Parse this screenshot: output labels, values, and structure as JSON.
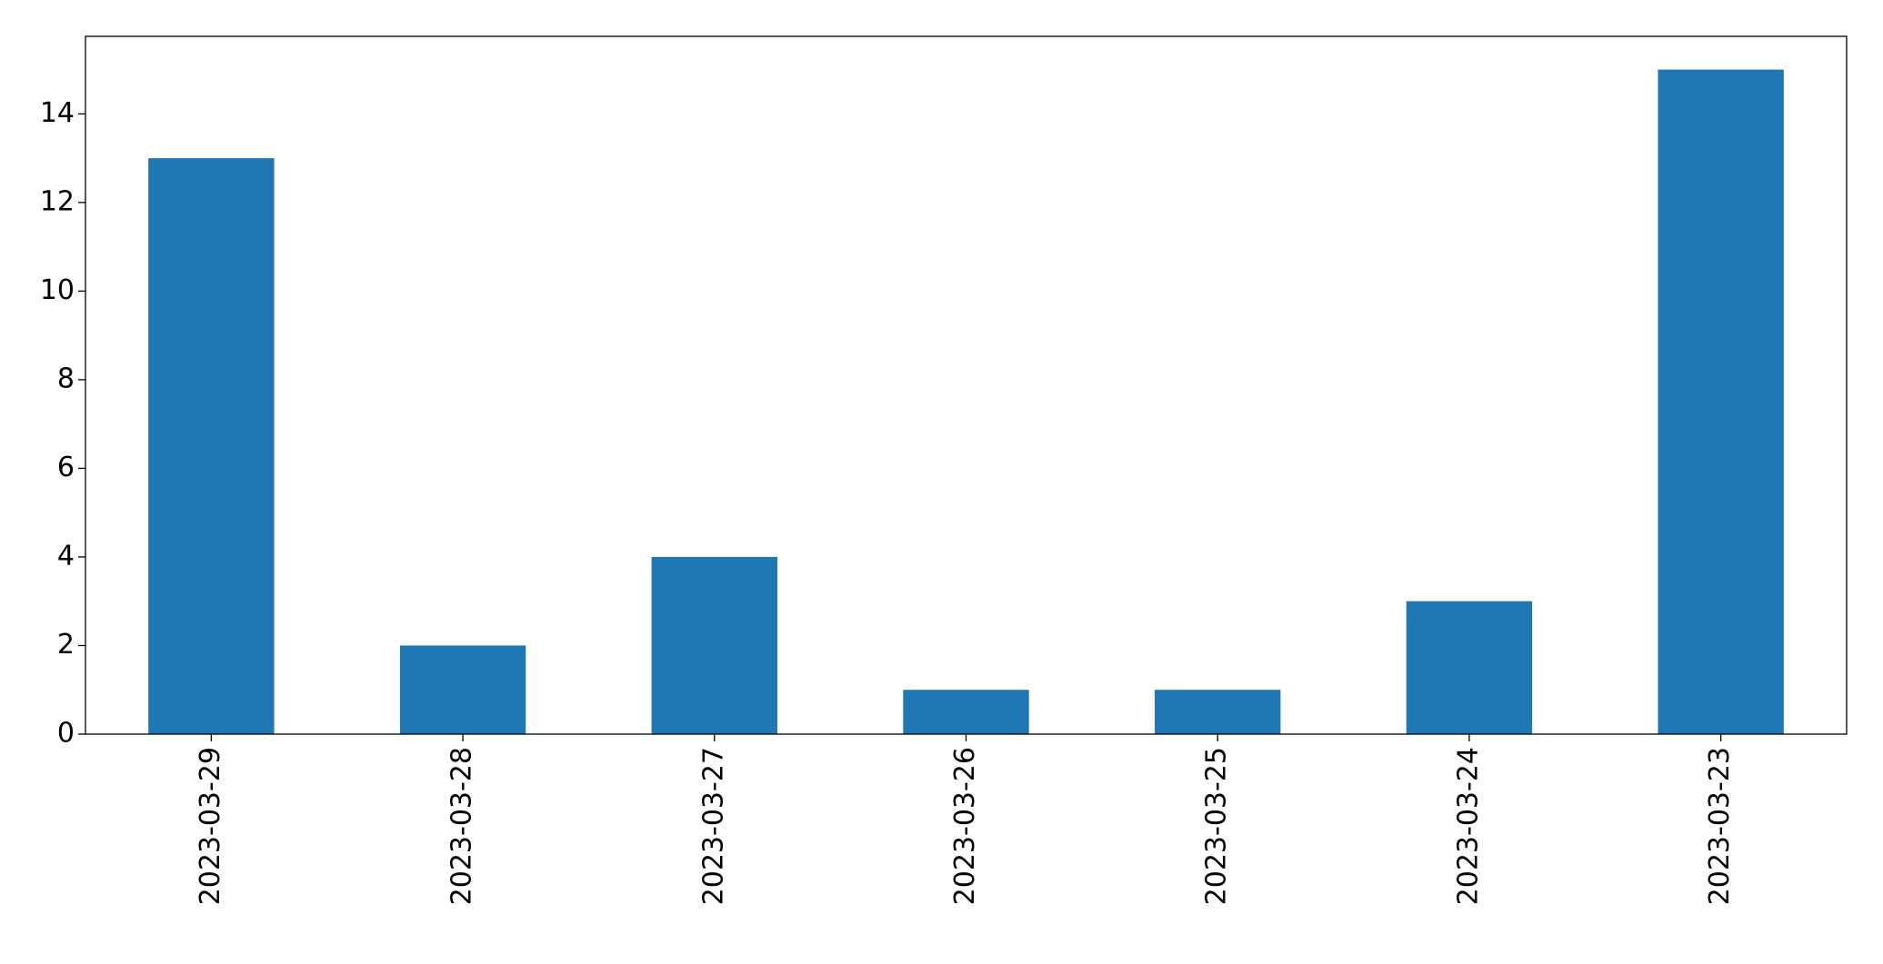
{
  "chart_data": {
    "type": "bar",
    "categories": [
      "2023-03-29",
      "2023-03-28",
      "2023-03-27",
      "2023-03-26",
      "2023-03-25",
      "2023-03-24",
      "2023-03-23"
    ],
    "values": [
      13,
      2,
      4,
      1,
      1,
      3,
      15
    ],
    "color": "#1f77b4",
    "ylim": [
      0,
      15.75
    ],
    "yticks": [
      0,
      2,
      4,
      6,
      8,
      10,
      12,
      14
    ],
    "grid": false
  }
}
